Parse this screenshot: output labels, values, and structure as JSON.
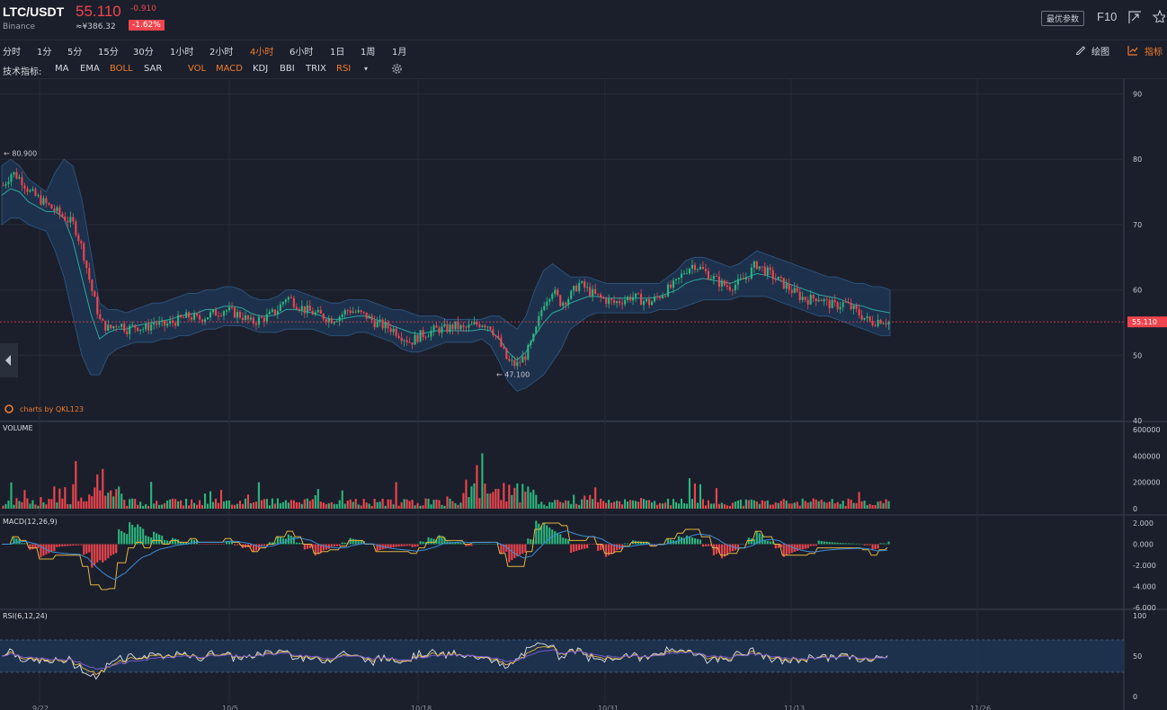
{
  "header": {
    "pair": "LTC/USDT",
    "exchange": "Binance",
    "price": "55.110",
    "cny_price": "≈¥386.32",
    "change": "-0.910",
    "change_pct": "-1.62%",
    "settings_button": "最优参数",
    "f10_label": "F10",
    "icons": [
      "fullscreen-icon",
      "star-icon"
    ]
  },
  "intervals": [
    {
      "label": "分时",
      "active": false
    },
    {
      "label": "1分",
      "active": false
    },
    {
      "label": "5分",
      "active": false
    },
    {
      "label": "15分",
      "active": false
    },
    {
      "label": "30分",
      "active": false
    },
    {
      "label": "1小时",
      "active": false
    },
    {
      "label": "2小时",
      "active": false
    },
    {
      "label": "4小时",
      "active": true
    },
    {
      "label": "6小时",
      "active": false
    },
    {
      "label": "1日",
      "active": false
    },
    {
      "label": "1周",
      "active": false
    },
    {
      "label": "1月",
      "active": false
    }
  ],
  "toolbar_right": {
    "draw_label": "绘图",
    "indicator_label": "指标"
  },
  "indicators": {
    "label": "技术指标:",
    "items": [
      {
        "label": "MA",
        "on": false
      },
      {
        "label": "EMA",
        "on": false
      },
      {
        "label": "BOLL",
        "on": true
      },
      {
        "label": "SAR",
        "on": false
      },
      {
        "label": "VOL",
        "on": true
      },
      {
        "label": "MACD",
        "on": true
      },
      {
        "label": "KDJ",
        "on": false
      },
      {
        "label": "BBI",
        "on": false
      },
      {
        "label": "TRIX",
        "on": false
      },
      {
        "label": "RSI",
        "on": true
      }
    ]
  },
  "colors": {
    "bg": "#1b1f2b",
    "up": "#2cb67d",
    "down": "#f0454e",
    "accent": "#f07b2c",
    "boll_fill": "#1f3552",
    "boll_mid": "#2aa7a0",
    "macd_dif": "#e3b341",
    "macd_dea": "#3c8dd9",
    "rsi_fill": "#1f3552",
    "rsi6": "#e0e3e8",
    "rsi12": "#e3b341",
    "rsi24": "#7b5cd9"
  },
  "chart_data": {
    "type": "candlestick",
    "watermark": "charts by QKL123",
    "x_ticks": [
      "9/22",
      "10/5",
      "10/18",
      "10/31",
      "11/13",
      "11/26"
    ],
    "price_panel": {
      "y_ticks": [
        40,
        50,
        60,
        70,
        80,
        90
      ],
      "ylim": [
        40,
        92
      ],
      "current_price": "55.110",
      "high_marker": "← 80.900",
      "low_marker": "← 47.100",
      "close_path": [
        76,
        78,
        77,
        75,
        74,
        73,
        72,
        71,
        70,
        66,
        60,
        55,
        54,
        55,
        54,
        54.5,
        54,
        55,
        54.5,
        55,
        55.5,
        56,
        55.5,
        56,
        56.5,
        57,
        56.5,
        56,
        55,
        55.5,
        56,
        57,
        59,
        58,
        57,
        56.5,
        56,
        55.5,
        56,
        57,
        56.5,
        56,
        55,
        54.5,
        54,
        53,
        52,
        53,
        53.5,
        54,
        54,
        54.5,
        54,
        54.5,
        55,
        54.5,
        52,
        49,
        48.5,
        50,
        53,
        58,
        60,
        58,
        59,
        61,
        60,
        59,
        58.5,
        58,
        58.5,
        59,
        58.5,
        58,
        59,
        60,
        61,
        63,
        64,
        63,
        62,
        61,
        60.5,
        61,
        62,
        64,
        63,
        62,
        61,
        60,
        59,
        58.5,
        59,
        58,
        57.5,
        58,
        57,
        56,
        55,
        55.5,
        55.11
      ],
      "boll_upper": [
        79,
        80,
        79,
        77,
        76,
        75,
        78,
        80,
        79,
        74,
        66,
        58,
        57,
        57,
        56.5,
        57,
        57.5,
        58,
        58,
        58.5,
        59,
        59.5,
        59.5,
        60,
        60,
        60.5,
        60.5,
        60,
        59,
        58.5,
        58.5,
        59,
        60,
        60,
        59.5,
        59,
        58.5,
        58,
        58,
        58.5,
        58.5,
        58.5,
        58,
        57.5,
        57,
        57,
        56.5,
        56,
        56,
        56,
        55.5,
        55.5,
        55.5,
        55.5,
        55.5,
        56,
        56,
        55,
        54,
        56,
        60,
        63,
        64,
        63,
        62,
        62,
        62,
        61.5,
        61,
        61,
        61,
        61,
        61,
        61,
        61,
        62,
        63,
        64.5,
        65,
        65,
        64.5,
        64,
        63.5,
        64,
        65,
        66,
        65.5,
        65,
        64.5,
        64,
        63.5,
        63,
        62.5,
        62,
        62,
        61.5,
        61,
        61,
        60.5,
        60.5,
        60
      ],
      "boll_lower": [
        70,
        71,
        71,
        70,
        69.5,
        69,
        66,
        62,
        56,
        50,
        47,
        47,
        50,
        51,
        51.5,
        52,
        52,
        52,
        52.5,
        52.5,
        53,
        53,
        53.5,
        54,
        54,
        54.5,
        54.5,
        54.5,
        54,
        53.5,
        53.5,
        53.5,
        54,
        54,
        54,
        54,
        53.5,
        53,
        53,
        53,
        53.5,
        53.5,
        53,
        52.5,
        52,
        51,
        50.5,
        50.5,
        51,
        51.5,
        52,
        52,
        52,
        52,
        52.5,
        51.5,
        49,
        46,
        44.5,
        45,
        46,
        47,
        49,
        51,
        54,
        55,
        56,
        56.5,
        56.5,
        56.5,
        56.5,
        56.5,
        56.5,
        56.5,
        57,
        57,
        57,
        57.5,
        58,
        58.5,
        58.5,
        58.5,
        58.5,
        59,
        59,
        59,
        59,
        58.5,
        58,
        57.5,
        57,
        56.5,
        56,
        56,
        55.5,
        55,
        54.5,
        54,
        53.5,
        53,
        53
      ]
    },
    "volume_panel": {
      "title": "VOLUME",
      "y_ticks": [
        "600000",
        "400000",
        "200000",
        "0"
      ],
      "ylim": [
        0,
        600000
      ]
    },
    "macd_panel": {
      "title": "MACD(12,26,9)",
      "y_ticks": [
        "2.000",
        "0.000",
        "-2.000",
        "-4.000",
        "-6.000"
      ],
      "ylim": [
        -6,
        2
      ]
    },
    "rsi_panel": {
      "title": "RSI(6,12,24)",
      "y_ticks": [
        "100",
        "50",
        "0"
      ],
      "ylim": [
        0,
        100
      ],
      "band": [
        30,
        70
      ]
    }
  }
}
